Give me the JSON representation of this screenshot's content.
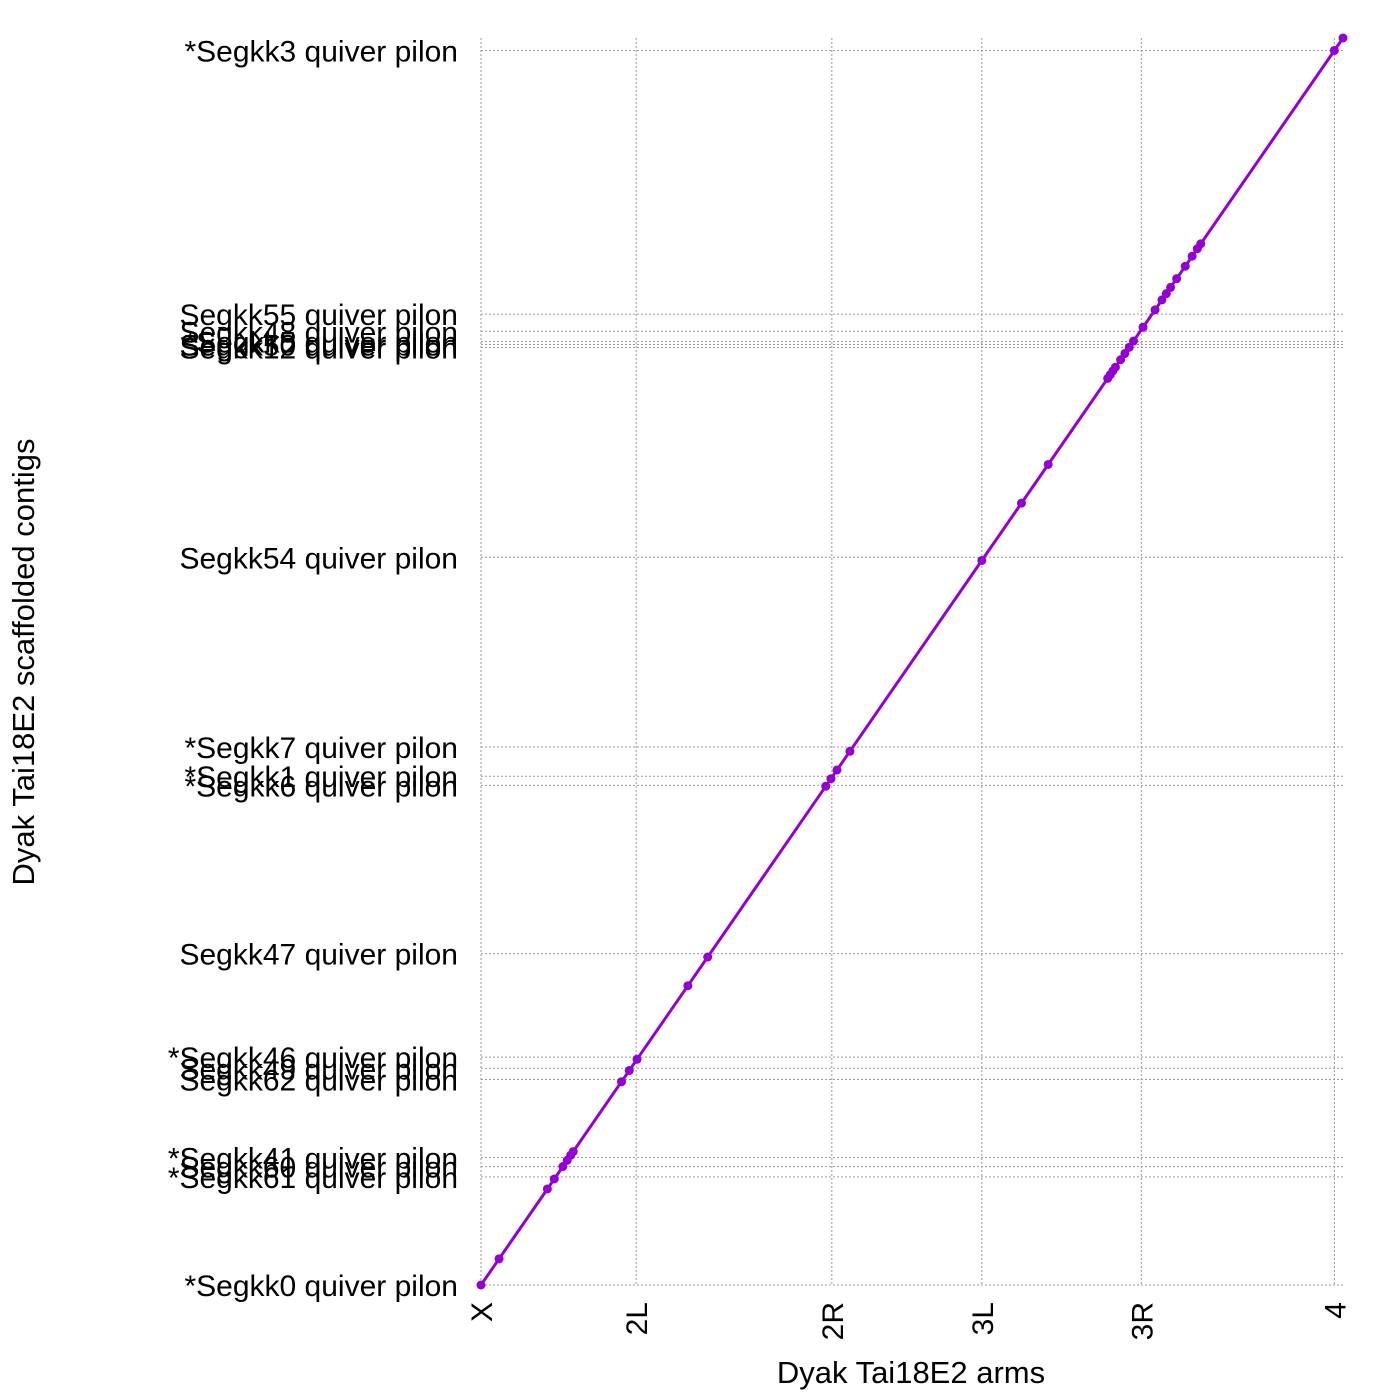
{
  "chart_data": {
    "type": "line",
    "xlabel": "Dyak Tai18E2 arms",
    "ylabel": "Dyak Tai18E2 scaffolded contigs",
    "grid": true,
    "x_ticks": [
      {
        "label": "X",
        "value": 0.0
      },
      {
        "label": "2L",
        "value": 0.18
      },
      {
        "label": "2R",
        "value": 0.407
      },
      {
        "label": "3L",
        "value": 0.581
      },
      {
        "label": "3R",
        "value": 0.766
      },
      {
        "label": "4",
        "value": 0.99
      }
    ],
    "y_ticks": [
      {
        "label": "*Segkk0 quiver pilon",
        "value": 0.0
      },
      {
        "label": "*Segkk61 quiver pilon",
        "value": 0.0867
      },
      {
        "label": "Segkk60 quiver pilon",
        "value": 0.0949
      },
      {
        "label": "*Segkk41 quiver pilon",
        "value": 0.1022
      },
      {
        "label": "Segkk62 quiver pilon",
        "value": 0.1648
      },
      {
        "label": "Segkk49 quiver pilon",
        "value": 0.1738
      },
      {
        "label": "*Segkk46 quiver pilon",
        "value": 0.1827
      },
      {
        "label": "Segkk47 quiver pilon",
        "value": 0.2657
      },
      {
        "label": "*Segkk6 quiver pilon",
        "value": 0.4007
      },
      {
        "label": "*Segkk1 quiver pilon",
        "value": 0.408
      },
      {
        "label": "*Segkk7 quiver pilon",
        "value": 0.4314
      },
      {
        "label": "Segkk54 quiver pilon",
        "value": 0.5836
      },
      {
        "label": "Segkk12 quiver pilon",
        "value": 0.7518
      },
      {
        "label": "Segkk50 quiver pilon",
        "value": 0.7542
      },
      {
        "label": "*Segkk5 quiver pilon",
        "value": 0.7566
      },
      {
        "label": "Segkk48 quiver pilon",
        "value": 0.7648
      },
      {
        "label": "Segkk55 quiver pilon",
        "value": 0.7786
      },
      {
        "label": "*Segkk3 quiver pilon",
        "value": 0.99
      }
    ],
    "xlim": [
      0,
      1.0
    ],
    "ylim": [
      0,
      1.0
    ],
    "series": [
      {
        "color": "#9400d3",
        "points": [
          [
            0.0,
            0.0
          ],
          [
            0.021,
            0.021
          ],
          [
            0.077,
            0.077
          ],
          [
            0.085,
            0.085
          ],
          [
            0.095,
            0.095
          ],
          [
            0.1,
            0.1
          ],
          [
            0.104,
            0.104
          ],
          [
            0.107,
            0.107
          ],
          [
            0.163,
            0.163
          ],
          [
            0.172,
            0.172
          ],
          [
            0.181,
            0.181
          ],
          [
            0.24,
            0.24
          ],
          [
            0.263,
            0.263
          ],
          [
            0.4,
            0.4
          ],
          [
            0.406,
            0.406
          ],
          [
            0.413,
            0.413
          ],
          [
            0.428,
            0.428
          ],
          [
            0.581,
            0.581
          ],
          [
            0.627,
            0.627
          ],
          [
            0.658,
            0.658
          ],
          [
            0.727,
            0.727
          ],
          [
            0.73,
            0.73
          ],
          [
            0.733,
            0.733
          ],
          [
            0.736,
            0.736
          ],
          [
            0.742,
            0.742
          ],
          [
            0.747,
            0.747
          ],
          [
            0.752,
            0.752
          ],
          [
            0.757,
            0.757
          ],
          [
            0.768,
            0.768
          ],
          [
            0.782,
            0.782
          ],
          [
            0.79,
            0.79
          ],
          [
            0.795,
            0.795
          ],
          [
            0.8,
            0.8
          ],
          [
            0.807,
            0.807
          ],
          [
            0.817,
            0.817
          ],
          [
            0.825,
            0.825
          ],
          [
            0.831,
            0.831
          ],
          [
            0.835,
            0.835
          ],
          [
            0.99,
            0.99
          ],
          [
            1.0,
            1.0
          ]
        ]
      }
    ]
  }
}
